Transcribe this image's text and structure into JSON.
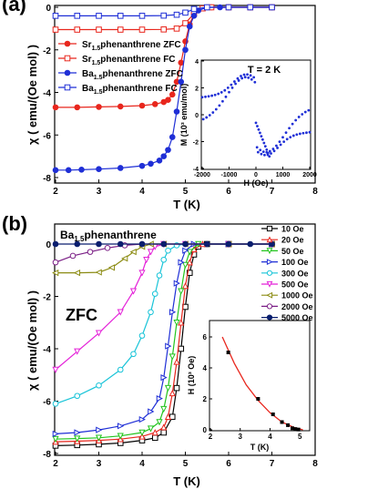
{
  "chart_data": [
    {
      "panel": "(a)",
      "type": "line",
      "ylabel": "χ ( emu/(Oe mol) )",
      "xlabel": "T (K)",
      "xlim": [
        2,
        8
      ],
      "ylim": [
        -8,
        0
      ],
      "xticks": [
        "2",
        "3",
        "4",
        "5",
        "6",
        "7",
        "8"
      ],
      "yticks": [
        "0",
        "-2",
        "-4",
        "-6",
        "-8"
      ],
      "legend_position": "left-middle",
      "series": [
        {
          "name": "Sr1.5phenanthrene ZFC",
          "name_main": "Sr",
          "name_sub": "1.5",
          "name_rest": "phenanthrene ZFC",
          "color": "#e8261d",
          "marker": "filled-circle",
          "x": [
            2.0,
            2.5,
            3.0,
            3.5,
            4.0,
            4.3,
            4.5,
            4.6,
            4.7,
            4.8,
            4.9,
            5.0,
            5.1,
            5.2,
            5.4,
            5.6,
            6.0,
            6.5,
            7.0
          ],
          "y": [
            -4.7,
            -4.7,
            -4.68,
            -4.66,
            -4.62,
            -4.55,
            -4.45,
            -4.35,
            -4.1,
            -3.5,
            -2.6,
            -1.6,
            -0.8,
            -0.3,
            -0.05,
            0.0,
            0.0,
            0.0,
            0.0
          ]
        },
        {
          "name": "Sr1.5phenanthrene FC",
          "name_main": "Sr",
          "name_sub": "1.5",
          "name_rest": "phenanthrene FC",
          "color": "#e8261d",
          "marker": "open-square",
          "x": [
            2.0,
            2.5,
            3.0,
            3.5,
            4.0,
            4.5,
            4.8,
            5.0,
            5.2,
            5.4,
            5.6,
            6.0,
            6.5,
            7.0
          ],
          "y": [
            -1.05,
            -1.05,
            -1.05,
            -1.05,
            -1.05,
            -1.04,
            -1.0,
            -0.75,
            -0.3,
            -0.05,
            0.0,
            0.0,
            0.0,
            0.0
          ]
        },
        {
          "name": "Ba1.5phenanthrene ZFC",
          "name_main": "Ba",
          "name_sub": "1.5",
          "name_rest": "phenanthrene ZFC",
          "color": "#1f2fd6",
          "marker": "filled-circle",
          "x": [
            2.0,
            2.3,
            2.6,
            3.0,
            3.5,
            4.0,
            4.2,
            4.4,
            4.5,
            4.6,
            4.7,
            4.8,
            4.9,
            5.0,
            5.1,
            5.2,
            5.3,
            5.5,
            5.8,
            6.0,
            6.5,
            7.0
          ],
          "y": [
            -7.65,
            -7.65,
            -7.63,
            -7.6,
            -7.55,
            -7.45,
            -7.35,
            -7.2,
            -7.0,
            -6.7,
            -6.1,
            -4.9,
            -3.5,
            -2.0,
            -0.9,
            -0.4,
            -0.15,
            0.0,
            0.0,
            0.0,
            0.0,
            0.0
          ]
        },
        {
          "name": "Ba1.5phenanthrene FC",
          "name_main": "Ba",
          "name_sub": "1.5",
          "name_rest": "phenanthrene FC",
          "color": "#1f2fd6",
          "marker": "open-square",
          "x": [
            2.0,
            2.5,
            3.0,
            3.5,
            4.0,
            4.5,
            4.8,
            5.0,
            5.2,
            5.5,
            6.0,
            6.5,
            7.0
          ],
          "y": [
            -0.4,
            -0.4,
            -0.4,
            -0.4,
            -0.4,
            -0.39,
            -0.35,
            -0.25,
            -0.08,
            0.0,
            0.0,
            0.0,
            0.0
          ]
        }
      ],
      "inset": {
        "type": "scatter",
        "annotation": "T = 2 K",
        "xlabel": "H (Oe)",
        "ylabel": "M (10³ emu/mol)",
        "xlim": [
          -2000,
          2000
        ],
        "ylim": [
          -4,
          4
        ],
        "xticks": [
          "-2000",
          "-1000",
          "0",
          "1000",
          "2000"
        ],
        "yticks": [
          "4",
          "2",
          "0",
          "-2",
          "-4"
        ],
        "color": "#1f2fd6"
      }
    },
    {
      "panel": "(b)",
      "type": "line",
      "title_main": "Ba",
      "title_sub": "1.5",
      "title_rest": "phenanthrene",
      "annotation": "ZFC",
      "ylabel": "χ ( emu/(Oe mol) )",
      "xlabel": "T (K)",
      "xlim": [
        2,
        8
      ],
      "ylim": [
        -8,
        0
      ],
      "xticks": [
        "2",
        "3",
        "4",
        "5",
        "6",
        "7",
        "8"
      ],
      "yticks": [
        "0",
        "-2",
        "-4",
        "-6",
        "-8"
      ],
      "legend_position": "right",
      "series": [
        {
          "name": "10 Oe",
          "color": "#000000",
          "marker": "open-square",
          "x": [
            2.0,
            2.5,
            3.0,
            3.5,
            4.0,
            4.3,
            4.5,
            4.7,
            4.8,
            4.9,
            5.0,
            5.1,
            5.2,
            5.3,
            5.5,
            6.0,
            7.0
          ],
          "y": [
            -7.7,
            -7.68,
            -7.65,
            -7.6,
            -7.5,
            -7.4,
            -7.2,
            -6.6,
            -5.5,
            -4.0,
            -2.4,
            -1.1,
            -0.4,
            -0.1,
            0.0,
            0.0,
            0.0
          ]
        },
        {
          "name": "20 Oe",
          "color": "#e8261d",
          "marker": "open-triangle-up",
          "x": [
            2.0,
            2.5,
            3.0,
            3.5,
            4.0,
            4.3,
            4.5,
            4.6,
            4.7,
            4.8,
            4.9,
            5.0,
            5.1,
            5.2,
            5.4,
            6.0,
            7.0
          ],
          "y": [
            -7.55,
            -7.53,
            -7.5,
            -7.45,
            -7.35,
            -7.2,
            -7.0,
            -6.6,
            -5.7,
            -4.5,
            -3.0,
            -1.6,
            -0.7,
            -0.2,
            0.0,
            0.0,
            0.0
          ]
        },
        {
          "name": "50 Oe",
          "color": "#22c41d",
          "marker": "open-triangle-down",
          "x": [
            2.0,
            2.5,
            3.0,
            3.5,
            4.0,
            4.2,
            4.4,
            4.5,
            4.6,
            4.7,
            4.8,
            4.9,
            5.0,
            5.1,
            5.3,
            6.0,
            7.0
          ],
          "y": [
            -7.45,
            -7.43,
            -7.4,
            -7.33,
            -7.2,
            -7.05,
            -6.8,
            -6.3,
            -5.5,
            -4.3,
            -3.0,
            -1.8,
            -0.8,
            -0.3,
            0.0,
            0.0,
            0.0
          ]
        },
        {
          "name": "100 Oe",
          "color": "#1f2fd6",
          "marker": "open-triangle-right",
          "x": [
            2.0,
            2.5,
            3.0,
            3.5,
            4.0,
            4.2,
            4.4,
            4.5,
            4.6,
            4.7,
            4.8,
            4.9,
            5.0,
            5.2,
            6.0,
            7.0
          ],
          "y": [
            -7.25,
            -7.2,
            -7.1,
            -6.95,
            -6.7,
            -6.4,
            -5.9,
            -5.1,
            -3.9,
            -2.6,
            -1.5,
            -0.7,
            -0.25,
            0.0,
            0.0,
            0.0
          ]
        },
        {
          "name": "300 Oe",
          "color": "#19c4d8",
          "marker": "open-circle",
          "x": [
            2.0,
            2.5,
            3.0,
            3.5,
            3.8,
            4.0,
            4.2,
            4.3,
            4.4,
            4.5,
            4.6,
            4.8,
            5.0,
            6.0,
            7.0
          ],
          "y": [
            -6.1,
            -5.8,
            -5.4,
            -4.8,
            -4.2,
            -3.5,
            -2.6,
            -1.9,
            -1.2,
            -0.6,
            -0.25,
            -0.05,
            0.0,
            0.0,
            0.0
          ]
        },
        {
          "name": "500 Oe",
          "color": "#e421d8",
          "marker": "open-triangle-down",
          "x": [
            2.0,
            2.5,
            3.0,
            3.5,
            3.8,
            4.0,
            4.1,
            4.2,
            4.3,
            4.5,
            5.0,
            6.0,
            7.0
          ],
          "y": [
            -4.8,
            -4.1,
            -3.4,
            -2.6,
            -1.8,
            -1.1,
            -0.6,
            -0.3,
            -0.1,
            0.0,
            0.0,
            0.0,
            0.0
          ]
        },
        {
          "name": "1000 Oe",
          "color": "#8b8b12",
          "marker": "open-triangle-left",
          "x": [
            2.0,
            2.5,
            3.0,
            3.3,
            3.6,
            3.8,
            4.0,
            4.2,
            4.5,
            5.0,
            6.0,
            7.0
          ],
          "y": [
            -1.1,
            -1.1,
            -1.08,
            -0.9,
            -0.55,
            -0.3,
            -0.1,
            0.0,
            0.0,
            0.0,
            0.0,
            0.0
          ]
        },
        {
          "name": "2000 Oe",
          "color": "#7b1f86",
          "marker": "open-circle",
          "x": [
            2.0,
            2.4,
            2.8,
            3.2,
            3.6,
            4.0,
            4.5,
            5.0,
            6.0,
            7.0
          ],
          "y": [
            -0.7,
            -0.45,
            -0.3,
            -0.15,
            -0.05,
            0.0,
            0.0,
            0.0,
            0.0,
            0.0
          ]
        },
        {
          "name": "5000 Oe",
          "color": "#0a1e6e",
          "marker": "filled-circle",
          "x": [
            2.0,
            2.5,
            3.0,
            3.5,
            4.0,
            4.5,
            5.0,
            5.5,
            6.0,
            6.5,
            7.0
          ],
          "y": [
            0.0,
            0.0,
            0.0,
            0.0,
            0.0,
            0.0,
            0.0,
            0.0,
            0.0,
            0.0,
            0.0
          ]
        }
      ],
      "inset": {
        "type": "scatter",
        "xlabel": "T (K)",
        "ylabel": "H (10³ Oe)",
        "xlim": [
          2,
          5.3
        ],
        "ylim": [
          0,
          7
        ],
        "xticks": [
          "2",
          "3",
          "4",
          "5"
        ],
        "yticks": [
          "0",
          "2",
          "4",
          "6"
        ],
        "points": {
          "x": [
            2.6,
            3.6,
            4.1,
            4.4,
            4.6,
            4.75,
            4.85,
            4.95
          ],
          "y": [
            5.0,
            2.0,
            1.0,
            0.5,
            0.3,
            0.1,
            0.05,
            0.02
          ]
        },
        "fit": {
          "x": [
            2.4,
            2.8,
            3.2,
            3.6,
            4.0,
            4.4,
            4.8,
            5.1
          ],
          "y": [
            6.0,
            4.3,
            2.9,
            1.9,
            1.1,
            0.5,
            0.15,
            0.0
          ]
        },
        "fit_color": "#e8261d"
      }
    }
  ]
}
